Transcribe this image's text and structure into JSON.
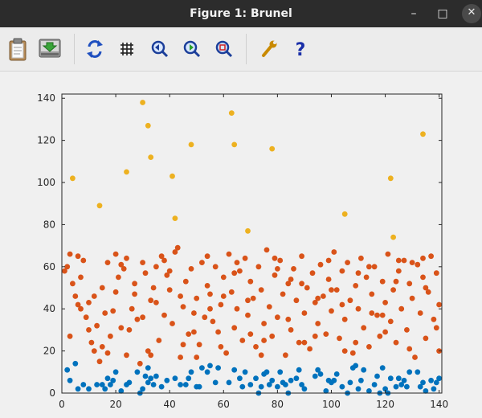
{
  "window": {
    "title": "Figure 1: Brunel"
  },
  "window_controls": {
    "minimize": "–",
    "maximize": "□",
    "close": "✕"
  },
  "toolbar": {
    "buttons": [
      "copy-to-clipboard",
      "save",
      "refresh-plot",
      "toggle-grid",
      "zoom-in",
      "zoom-out",
      "autoscale",
      "settings",
      "help"
    ],
    "help_glyph": "?"
  },
  "chart_data": {
    "type": "scatter",
    "title": "",
    "xlabel": "",
    "ylabel": "",
    "xlim": [
      0,
      141
    ],
    "ylim": [
      0,
      142
    ],
    "x_ticks": [
      "0",
      "20",
      "40",
      "60",
      "80",
      "100",
      "120",
      "140"
    ],
    "y_ticks": [
      "0",
      "20",
      "40",
      "60",
      "80",
      "100",
      "120",
      "140"
    ],
    "grid": false,
    "series": [
      {
        "color": "#0072bd",
        "points": [
          [
            2,
            11
          ],
          [
            3,
            6
          ],
          [
            5,
            14
          ],
          [
            6,
            2
          ],
          [
            8,
            4
          ],
          [
            10,
            2
          ],
          [
            13,
            4
          ],
          [
            15,
            4
          ],
          [
            16,
            2
          ],
          [
            17,
            7
          ],
          [
            18,
            4
          ],
          [
            19,
            6
          ],
          [
            20,
            10
          ],
          [
            22,
            1
          ],
          [
            24,
            4
          ],
          [
            25,
            5
          ],
          [
            28,
            10
          ],
          [
            29,
            0
          ],
          [
            30,
            2
          ],
          [
            31,
            8
          ],
          [
            32,
            12
          ],
          [
            32,
            5
          ],
          [
            33,
            7
          ],
          [
            34,
            4
          ],
          [
            35,
            8
          ],
          [
            37,
            3
          ],
          [
            39,
            6
          ],
          [
            42,
            7
          ],
          [
            44,
            4
          ],
          [
            46,
            4
          ],
          [
            47,
            7
          ],
          [
            48,
            10
          ],
          [
            50,
            3
          ],
          [
            51,
            3
          ],
          [
            52,
            12
          ],
          [
            54,
            10
          ],
          [
            55,
            13
          ],
          [
            57,
            5
          ],
          [
            58,
            12
          ],
          [
            62,
            5
          ],
          [
            64,
            11
          ],
          [
            66,
            7
          ],
          [
            67,
            3
          ],
          [
            68,
            10
          ],
          [
            70,
            4
          ],
          [
            72,
            7
          ],
          [
            73,
            0
          ],
          [
            74,
            3
          ],
          [
            75,
            9
          ],
          [
            76,
            10
          ],
          [
            77,
            4
          ],
          [
            78,
            6
          ],
          [
            80,
            3
          ],
          [
            81,
            10
          ],
          [
            82,
            5
          ],
          [
            83,
            4
          ],
          [
            84,
            0
          ],
          [
            85,
            6
          ],
          [
            87,
            7
          ],
          [
            88,
            11
          ],
          [
            89,
            4
          ],
          [
            90,
            2
          ],
          [
            94,
            8
          ],
          [
            95,
            11
          ],
          [
            96,
            9
          ],
          [
            98,
            1
          ],
          [
            99,
            6
          ],
          [
            100,
            5
          ],
          [
            101,
            6
          ],
          [
            102,
            9
          ],
          [
            104,
            3
          ],
          [
            106,
            0
          ],
          [
            107,
            5
          ],
          [
            108,
            12
          ],
          [
            109,
            13
          ],
          [
            110,
            2
          ],
          [
            111,
            6
          ],
          [
            112,
            11
          ],
          [
            114,
            1
          ],
          [
            116,
            4
          ],
          [
            117,
            8
          ],
          [
            118,
            0
          ],
          [
            119,
            12
          ],
          [
            120,
            2
          ],
          [
            121,
            0
          ],
          [
            122,
            7
          ],
          [
            124,
            3
          ],
          [
            125,
            7
          ],
          [
            126,
            4
          ],
          [
            127,
            6
          ],
          [
            128,
            3
          ],
          [
            129,
            10
          ],
          [
            132,
            10
          ],
          [
            133,
            3
          ],
          [
            134,
            5
          ],
          [
            135,
            1
          ],
          [
            137,
            6
          ],
          [
            138,
            2
          ],
          [
            139,
            5
          ],
          [
            140,
            7
          ]
        ]
      },
      {
        "color": "#d95319",
        "points": [
          [
            1,
            58
          ],
          [
            2,
            60
          ],
          [
            3,
            66
          ],
          [
            4,
            52
          ],
          [
            5,
            46
          ],
          [
            6,
            42
          ],
          [
            7,
            40
          ],
          [
            8,
            63
          ],
          [
            9,
            36
          ],
          [
            10,
            30
          ],
          [
            11,
            24
          ],
          [
            12,
            46
          ],
          [
            13,
            32
          ],
          [
            14,
            15
          ],
          [
            15,
            22
          ],
          [
            16,
            38
          ],
          [
            17,
            19
          ],
          [
            18,
            27
          ],
          [
            19,
            39
          ],
          [
            20,
            48
          ],
          [
            21,
            55
          ],
          [
            22,
            61
          ],
          [
            23,
            59
          ],
          [
            24,
            64
          ],
          [
            25,
            30
          ],
          [
            26,
            40
          ],
          [
            27,
            47
          ],
          [
            28,
            35
          ],
          [
            29,
            14
          ],
          [
            30,
            62
          ],
          [
            31,
            57
          ],
          [
            32,
            20
          ],
          [
            33,
            44
          ],
          [
            34,
            50
          ],
          [
            35,
            43
          ],
          [
            36,
            25
          ],
          [
            37,
            65
          ],
          [
            38,
            37
          ],
          [
            39,
            56
          ],
          [
            40,
            49
          ],
          [
            41,
            33
          ],
          [
            42,
            67
          ],
          [
            43,
            69
          ],
          [
            44,
            17
          ],
          [
            45,
            41
          ],
          [
            46,
            53
          ],
          [
            47,
            28
          ],
          [
            48,
            59
          ],
          [
            49,
            38
          ],
          [
            50,
            45
          ],
          [
            51,
            23
          ],
          [
            52,
            62
          ],
          [
            53,
            36
          ],
          [
            54,
            51
          ],
          [
            55,
            47
          ],
          [
            56,
            34
          ],
          [
            57,
            60
          ],
          [
            58,
            29
          ],
          [
            59,
            42
          ],
          [
            60,
            55
          ],
          [
            61,
            19
          ],
          [
            62,
            66
          ],
          [
            63,
            48
          ],
          [
            64,
            31
          ],
          [
            65,
            40
          ],
          [
            66,
            58
          ],
          [
            67,
            25
          ],
          [
            68,
            64
          ],
          [
            69,
            37
          ],
          [
            70,
            53
          ],
          [
            71,
            45
          ],
          [
            72,
            22
          ],
          [
            73,
            60
          ],
          [
            74,
            49
          ],
          [
            75,
            33
          ],
          [
            76,
            68
          ],
          [
            77,
            41
          ],
          [
            78,
            27
          ],
          [
            79,
            56
          ],
          [
            80,
            36
          ],
          [
            81,
            63
          ],
          [
            82,
            47
          ],
          [
            83,
            18
          ],
          [
            84,
            52
          ],
          [
            85,
            30
          ],
          [
            86,
            59
          ],
          [
            87,
            44
          ],
          [
            88,
            24
          ],
          [
            89,
            65
          ],
          [
            90,
            38
          ],
          [
            91,
            50
          ],
          [
            92,
            21
          ],
          [
            93,
            57
          ],
          [
            94,
            43
          ],
          [
            95,
            33
          ],
          [
            96,
            61
          ],
          [
            97,
            46
          ],
          [
            98,
            28
          ],
          [
            99,
            54
          ],
          [
            100,
            39
          ],
          [
            101,
            67
          ],
          [
            102,
            49
          ],
          [
            103,
            26
          ],
          [
            104,
            58
          ],
          [
            105,
            35
          ],
          [
            106,
            62
          ],
          [
            107,
            44
          ],
          [
            108,
            19
          ],
          [
            109,
            51
          ],
          [
            110,
            40
          ],
          [
            111,
            64
          ],
          [
            112,
            31
          ],
          [
            113,
            55
          ],
          [
            114,
            22
          ],
          [
            115,
            47
          ],
          [
            116,
            60
          ],
          [
            117,
            37
          ],
          [
            118,
            27
          ],
          [
            119,
            53
          ],
          [
            120,
            43
          ],
          [
            121,
            66
          ],
          [
            122,
            34
          ],
          [
            123,
            49
          ],
          [
            124,
            24
          ],
          [
            125,
            58
          ],
          [
            126,
            40
          ],
          [
            127,
            63
          ],
          [
            128,
            30
          ],
          [
            129,
            52
          ],
          [
            130,
            45
          ],
          [
            131,
            17
          ],
          [
            132,
            61
          ],
          [
            133,
            38
          ],
          [
            134,
            55
          ],
          [
            135,
            26
          ],
          [
            136,
            48
          ],
          [
            137,
            65
          ],
          [
            138,
            35
          ],
          [
            139,
            57
          ],
          [
            140,
            42
          ],
          [
            3,
            27
          ],
          [
            7,
            55
          ],
          [
            12,
            20
          ],
          [
            17,
            62
          ],
          [
            22,
            31
          ],
          [
            27,
            52
          ],
          [
            33,
            18
          ],
          [
            38,
            63
          ],
          [
            44,
            46
          ],
          [
            49,
            29
          ],
          [
            54,
            65
          ],
          [
            59,
            22
          ],
          [
            64,
            57
          ],
          [
            69,
            44
          ],
          [
            74,
            18
          ],
          [
            79,
            64
          ],
          [
            84,
            35
          ],
          [
            89,
            52
          ],
          [
            94,
            27
          ],
          [
            99,
            63
          ],
          [
            104,
            42
          ],
          [
            109,
            24
          ],
          [
            114,
            60
          ],
          [
            119,
            37
          ],
          [
            124,
            53
          ],
          [
            129,
            21
          ],
          [
            134,
            64
          ],
          [
            139,
            31
          ],
          [
            6,
            65
          ],
          [
            15,
            50
          ],
          [
            24,
            18
          ],
          [
            35,
            60
          ],
          [
            45,
            23
          ],
          [
            55,
            40
          ],
          [
            65,
            62
          ],
          [
            75,
            25
          ],
          [
            85,
            54
          ],
          [
            95,
            45
          ],
          [
            105,
            20
          ],
          [
            115,
            38
          ],
          [
            125,
            63
          ],
          [
            135,
            50
          ],
          [
            10,
            43
          ],
          [
            20,
            66
          ],
          [
            30,
            36
          ],
          [
            40,
            58
          ],
          [
            50,
            17
          ],
          [
            60,
            46
          ],
          [
            70,
            28
          ],
          [
            80,
            59
          ],
          [
            90,
            24
          ],
          [
            100,
            49
          ],
          [
            110,
            57
          ],
          [
            120,
            29
          ],
          [
            130,
            62
          ],
          [
            140,
            20
          ]
        ]
      },
      {
        "color": "#edb120",
        "points": [
          [
            4,
            102
          ],
          [
            14,
            89
          ],
          [
            24,
            105
          ],
          [
            30,
            138
          ],
          [
            32,
            127
          ],
          [
            33,
            112
          ],
          [
            41,
            103
          ],
          [
            42,
            83
          ],
          [
            48,
            118
          ],
          [
            63,
            133
          ],
          [
            64,
            118
          ],
          [
            69,
            77
          ],
          [
            78,
            116
          ],
          [
            105,
            85
          ],
          [
            122,
            102
          ],
          [
            123,
            74
          ],
          [
            134,
            123
          ]
        ]
      }
    ]
  }
}
